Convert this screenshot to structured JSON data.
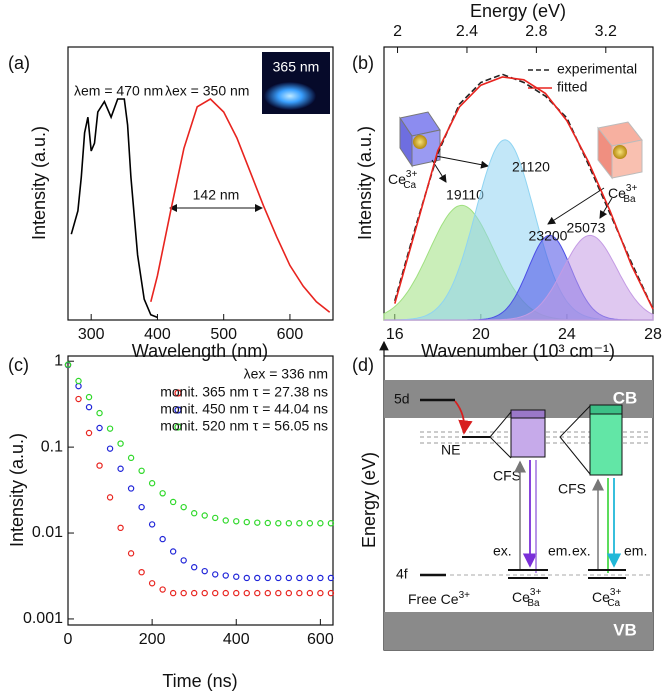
{
  "panel_labels": [
    "(a)",
    "(b)",
    "(c)",
    "(d)"
  ],
  "chart_data": [
    {
      "type": "line",
      "x_label": "Wavelength (nm)",
      "y_label": "Intensity (a.u.)",
      "xlim": [
        265,
        665
      ],
      "xticks": [
        300,
        400,
        500,
        600
      ],
      "ylim": [
        0,
        1.05
      ],
      "series": [
        {
          "color": "#000000",
          "x": [
            270,
            280,
            285,
            290,
            295,
            300,
            305,
            310,
            320,
            330,
            340,
            350,
            355,
            360,
            370,
            380,
            390,
            400
          ],
          "values": [
            0.33,
            0.42,
            0.55,
            0.72,
            0.78,
            0.65,
            0.68,
            0.8,
            0.84,
            0.78,
            0.85,
            0.85,
            0.75,
            0.55,
            0.25,
            0.08,
            0.02,
            0.01
          ]
        },
        {
          "color": "#e8241f",
          "x": [
            390,
            400,
            420,
            440,
            460,
            480,
            500,
            520,
            540,
            560,
            580,
            600,
            620,
            640,
            660
          ],
          "values": [
            0.07,
            0.17,
            0.42,
            0.66,
            0.82,
            0.85,
            0.8,
            0.7,
            0.57,
            0.44,
            0.32,
            0.21,
            0.13,
            0.07,
            0.03
          ]
        }
      ],
      "annotations": [
        "λem = 470 nm",
        "λex = 350 nm",
        "142 nm"
      ],
      "inset_label": "365 nm"
    },
    {
      "type": "line",
      "x_label": "Wavenumber (10³ cm⁻¹)",
      "x2_label": "Energy (eV)",
      "y_label": "Intensity (a.u.)",
      "xlim": [
        15.5,
        28
      ],
      "xticks": [
        16,
        20,
        24,
        28
      ],
      "x2lim": [
        1.922,
        3.472
      ],
      "x2ticks": [
        2,
        2.4,
        2.8,
        3.2
      ],
      "ylim": [
        0,
        1
      ],
      "x": [
        16,
        17,
        18,
        19,
        20,
        21,
        22,
        23,
        24,
        25,
        26,
        27,
        28
      ],
      "series": [
        {
          "name": "experimental",
          "color": "#222222",
          "linestyle": "dashed",
          "values": [
            0.07,
            0.35,
            0.61,
            0.79,
            0.87,
            0.9,
            0.87,
            0.82,
            0.74,
            0.57,
            0.39,
            0.21,
            0.04
          ]
        },
        {
          "name": "fitted",
          "color": "#e8241f",
          "linestyle": "solid",
          "values": [
            0.06,
            0.34,
            0.62,
            0.78,
            0.86,
            0.89,
            0.88,
            0.83,
            0.73,
            0.58,
            0.4,
            0.2,
            0.04
          ]
        }
      ],
      "peaks": [
        {
          "label": "19110",
          "center": 19.11,
          "height": 0.42,
          "sigma": 1.5,
          "color": "#9fe07f"
        },
        {
          "label": "21120",
          "center": 21.12,
          "height": 0.66,
          "sigma": 1.35,
          "color": "#8fd4f2"
        },
        {
          "label": "23200",
          "center": 23.2,
          "height": 0.31,
          "sigma": 1.0,
          "color": "#4b4ee6"
        },
        {
          "label": "25073",
          "center": 25.073,
          "height": 0.31,
          "sigma": 1.25,
          "color": "#c49be4"
        }
      ],
      "sites": [
        {
          "base": "Ce",
          "sup": "3+",
          "sub": "Ca"
        },
        {
          "base": "Ce",
          "sup": "3+",
          "sub": "Ba"
        }
      ]
    },
    {
      "type": "scatter",
      "x_label": "Time (ns)",
      "y_label": "Intensity (a.u.)",
      "log_y": true,
      "xlim": [
        0,
        630
      ],
      "xticks": [
        0,
        200,
        400,
        600
      ],
      "ylim": [
        0.00085,
        1.15
      ],
      "yticks": [
        0.001,
        0.01,
        0.1,
        1
      ],
      "annotation": "λex = 336 nm",
      "x": [
        0,
        25,
        50,
        75,
        100,
        125,
        150,
        175,
        200,
        225,
        250,
        275,
        300,
        325,
        350,
        375,
        400,
        425,
        450,
        475,
        500,
        525,
        550,
        575,
        600,
        625
      ],
      "series": [
        {
          "name": "monit. 365 nm τ = 27.38 ns",
          "color": "#e8241f",
          "values": [
            0.9,
            0.363,
            0.146,
            0.061,
            0.026,
            0.0115,
            0.0058,
            0.0035,
            0.0026,
            0.0022,
            0.002,
            0.002,
            0.002,
            0.002,
            0.002,
            0.002,
            0.002,
            0.002,
            0.002,
            0.002,
            0.002,
            0.002,
            0.002,
            0.002,
            0.002,
            0.002
          ]
        },
        {
          "name": "monit. 450 nm τ = 44.04 ns",
          "color": "#1f24d8",
          "values": [
            0.903,
            0.513,
            0.292,
            0.167,
            0.096,
            0.056,
            0.033,
            0.02,
            0.0126,
            0.0085,
            0.0061,
            0.0048,
            0.004,
            0.0036,
            0.0033,
            0.0032,
            0.0031,
            0.003,
            0.003,
            0.003,
            0.003,
            0.003,
            0.003,
            0.003,
            0.003,
            0.003
          ]
        },
        {
          "name": "monit. 520 nm τ = 56.05 ns",
          "color": "#2fd82a",
          "values": [
            0.913,
            0.589,
            0.382,
            0.249,
            0.164,
            0.11,
            0.075,
            0.053,
            0.038,
            0.029,
            0.023,
            0.02,
            0.017,
            0.016,
            0.015,
            0.014,
            0.0137,
            0.0134,
            0.0132,
            0.0131,
            0.013,
            0.013,
            0.013,
            0.013,
            0.013,
            0.013
          ]
        }
      ]
    }
  ],
  "diagram": {
    "cb": "CB",
    "vb": "VB",
    "axis_label": "Energy (eV)",
    "level_5d": "5d",
    "level_4f": "4f",
    "ne": "NE",
    "cfs": [
      "CFS",
      "CFS"
    ],
    "ex": [
      "ex.",
      "ex."
    ],
    "em": [
      "em.",
      "em."
    ],
    "free_ion": {
      "base": "Free Ce",
      "sup": "3+"
    },
    "sites": [
      {
        "base": "Ce",
        "sup": "3+",
        "sub": "Ba"
      },
      {
        "base": "Ce",
        "sup": "3+",
        "sub": "Ca"
      }
    ]
  }
}
